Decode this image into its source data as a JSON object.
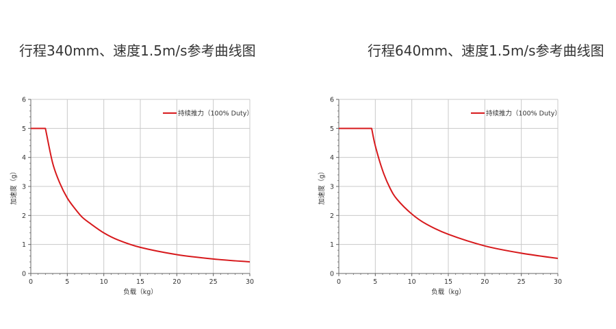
{
  "chart_data": [
    {
      "type": "line",
      "title": "行程340mm、速度1.5m/s参考曲线图",
      "xlabel": "负载（kg）",
      "ylabel": "加速度（g）",
      "xlim": [
        0,
        30
      ],
      "ylim": [
        0,
        6
      ],
      "xticks": [
        "0",
        "5",
        "10",
        "15",
        "20",
        "25",
        "30"
      ],
      "yticks": [
        "0",
        "1",
        "2",
        "3",
        "4",
        "5",
        "6"
      ],
      "grid": true,
      "legend_position": "top-right",
      "series": [
        {
          "name": "持续推力（100% Duty）",
          "color": "#d7191c",
          "x": [
            0,
            2,
            3,
            4,
            5,
            6,
            7,
            8,
            10,
            12,
            15,
            20,
            25,
            30
          ],
          "y": [
            5.0,
            5.0,
            3.8,
            3.1,
            2.6,
            2.25,
            1.95,
            1.75,
            1.4,
            1.15,
            0.9,
            0.65,
            0.5,
            0.4
          ]
        }
      ]
    },
    {
      "type": "line",
      "title": "行程640mm、速度1.5m/s参考曲线图",
      "xlabel": "负载（kg）",
      "ylabel": "加速度（g）",
      "xlim": [
        0,
        30
      ],
      "ylim": [
        0,
        6
      ],
      "xticks": [
        "0",
        "5",
        "10",
        "15",
        "20",
        "25",
        "30"
      ],
      "yticks": [
        "0",
        "1",
        "2",
        "3",
        "4",
        "5",
        "6"
      ],
      "grid": true,
      "legend_position": "top-right",
      "series": [
        {
          "name": "持续推力（100% Duty）",
          "color": "#d7191c",
          "x": [
            0,
            4.5,
            5,
            6,
            7,
            8,
            10,
            12,
            15,
            20,
            25,
            30
          ],
          "y": [
            5.0,
            5.0,
            4.4,
            3.55,
            2.95,
            2.55,
            2.05,
            1.7,
            1.35,
            0.95,
            0.7,
            0.52
          ]
        }
      ]
    }
  ]
}
